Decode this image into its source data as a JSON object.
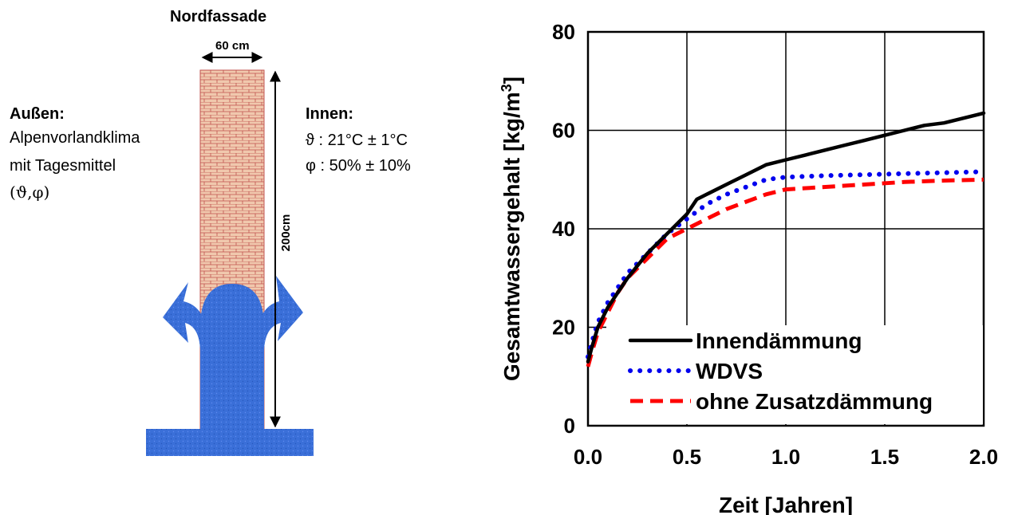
{
  "diagram": {
    "title": "Nordfassade",
    "width_label": "60 cm",
    "height_label": "200cm",
    "outside": {
      "heading": "Außen:",
      "lines": [
        "Alpenvorlandklima",
        "mit Tagesmittel",
        "(ϑ,φ)"
      ]
    },
    "inside": {
      "heading": "Innen:",
      "lines": [
        "ϑ : 21°C ± 1°C",
        "φ : 50% ± 10%"
      ]
    },
    "colors": {
      "brick": "#f0c8ad",
      "brick_line": "#c0504d",
      "water": "#3a6fd8"
    }
  },
  "chart_data": {
    "type": "line",
    "title": "",
    "xlabel": "Zeit [Jahren]",
    "ylabel": "Gesamtwassergehalt [kg/m",
    "ylabel_sup": "3",
    "ylabel_end": "]",
    "xlim": [
      0,
      2
    ],
    "ylim": [
      0,
      80
    ],
    "xticks": [
      "0.0",
      "0.5",
      "1.0",
      "1.5",
      "2.0"
    ],
    "yticks": [
      "0",
      "20",
      "40",
      "60",
      "80"
    ],
    "grid": true,
    "legend_position": "lower-right",
    "series": [
      {
        "name": "Innendämmung",
        "style": "solid",
        "color": "#000000",
        "x": [
          0,
          0.02,
          0.05,
          0.1,
          0.15,
          0.2,
          0.3,
          0.4,
          0.5,
          0.55,
          0.6,
          0.7,
          0.8,
          0.9,
          1.0,
          1.1,
          1.2,
          1.3,
          1.4,
          1.5,
          1.6,
          1.7,
          1.8,
          1.9,
          2.0
        ],
        "y": [
          13,
          16,
          20,
          24,
          27,
          30,
          35,
          39,
          43,
          46,
          47,
          49,
          51,
          53,
          54,
          55,
          56,
          57,
          58,
          59,
          60,
          61,
          61.5,
          62.5,
          63.5
        ]
      },
      {
        "name": "WDVS",
        "style": "dotted",
        "color": "#0000ee",
        "x": [
          0,
          0.02,
          0.05,
          0.1,
          0.15,
          0.2,
          0.3,
          0.4,
          0.5,
          0.6,
          0.7,
          0.8,
          0.9,
          1.0,
          1.2,
          1.4,
          1.6,
          1.8,
          2.0
        ],
        "y": [
          14,
          17,
          21,
          25,
          28,
          31,
          35,
          39,
          42,
          45,
          47,
          48.5,
          50,
          50.5,
          50.8,
          51,
          51.2,
          51.4,
          51.6
        ]
      },
      {
        "name": "ohne Zusatzdämmung",
        "style": "dashed",
        "color": "#ff0000",
        "x": [
          0,
          0.02,
          0.05,
          0.1,
          0.15,
          0.2,
          0.3,
          0.4,
          0.5,
          0.6,
          0.7,
          0.8,
          0.9,
          1.0,
          1.2,
          1.4,
          1.6,
          1.8,
          2.0
        ],
        "y": [
          12,
          15,
          19,
          23,
          27,
          30,
          34,
          38,
          40,
          42,
          44,
          45.5,
          47,
          48,
          48.5,
          49,
          49.5,
          49.8,
          50
        ]
      }
    ]
  }
}
